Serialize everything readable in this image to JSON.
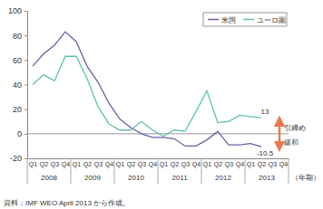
{
  "chart_data": {
    "type": "line",
    "categories": [
      "Q1",
      "Q2",
      "Q3",
      "Q4",
      "Q1",
      "Q2",
      "Q3",
      "Q4",
      "Q1",
      "Q2",
      "Q3",
      "Q4",
      "Q1",
      "Q2",
      "Q3",
      "Q4",
      "Q1",
      "Q2",
      "Q3",
      "Q4",
      "Q1",
      "Q2",
      "Q3",
      "Q4"
    ],
    "years": [
      "2008",
      "2009",
      "2010",
      "2011",
      "2012",
      "2013"
    ],
    "xlabel": "（年期）",
    "source": "資料：IMF WEO April 2013 から作成。",
    "ylim": [
      -20,
      100
    ],
    "yticks": [
      -20,
      0,
      20,
      40,
      60,
      80,
      100
    ],
    "grid": false,
    "legend": "upper right",
    "series": [
      {
        "name": "米国",
        "color": "#6a5fa8",
        "values": [
          55,
          65,
          72,
          83,
          75,
          55,
          42,
          25,
          12,
          5,
          0,
          -3,
          -3,
          -4,
          -10,
          -10,
          -5,
          2,
          -9,
          -9,
          -8,
          -10.5,
          null,
          null
        ]
      },
      {
        "name": "ユーロ圏",
        "color": "#5fc4a8",
        "values": [
          40,
          48,
          43,
          63,
          63,
          45,
          22,
          8,
          3,
          3,
          10,
          3,
          -2,
          3,
          2,
          18,
          35,
          9,
          10,
          15,
          14,
          13,
          null,
          null
        ]
      }
    ],
    "annotations": [
      {
        "text": "13",
        "series": 1,
        "index": 21
      },
      {
        "text": "-10.5",
        "series": 0,
        "index": 21
      },
      {
        "text": "引締め"
      },
      {
        "text": "緩和"
      }
    ]
  }
}
